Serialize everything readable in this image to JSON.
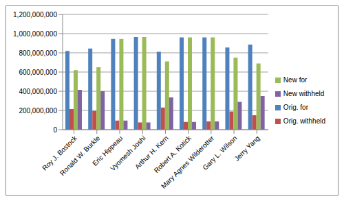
{
  "chart_data": {
    "type": "bar",
    "categories": [
      "Roy J. Bostock",
      "Ronald W. Burkle",
      "Eric Hippeau",
      "Vyomesh Joshi",
      "Arthur H. Kern",
      "Robert A. Kotick",
      "Mary Agnes Wilderotter",
      "Gary L. Wilson",
      "Jerry Yang"
    ],
    "series": [
      {
        "name": "Orig. for",
        "color": "#4f81bd",
        "values": [
          820000000,
          845000000,
          945000000,
          965000000,
          810000000,
          960000000,
          960000000,
          855000000,
          885000000
        ]
      },
      {
        "name": "Orig. withheld",
        "color": "#c0504d",
        "values": [
          215000000,
          195000000,
          95000000,
          75000000,
          230000000,
          80000000,
          85000000,
          190000000,
          150000000
        ]
      },
      {
        "name": "New for",
        "color": "#9bbb59",
        "values": [
          620000000,
          650000000,
          945000000,
          965000000,
          710000000,
          960000000,
          960000000,
          750000000,
          690000000
        ]
      },
      {
        "name": "New withheld",
        "color": "#8064a2",
        "values": [
          415000000,
          400000000,
          95000000,
          75000000,
          335000000,
          80000000,
          85000000,
          290000000,
          350000000
        ]
      }
    ],
    "ylim": [
      0,
      1200000000
    ],
    "yticks": [
      0,
      {
        "value": 200000000,
        "label": "200,000,000"
      },
      {
        "value": 400000000,
        "label": "400,000,000"
      },
      {
        "value": 600000000,
        "label": "600,000,000"
      },
      {
        "value": 800000000,
        "label": "800,000,000"
      },
      {
        "value": 1000000000,
        "label": "1,000,000,000"
      },
      {
        "value": 1200000000,
        "label": "1,200,000,000"
      }
    ],
    "grid": true,
    "legend": "right"
  }
}
